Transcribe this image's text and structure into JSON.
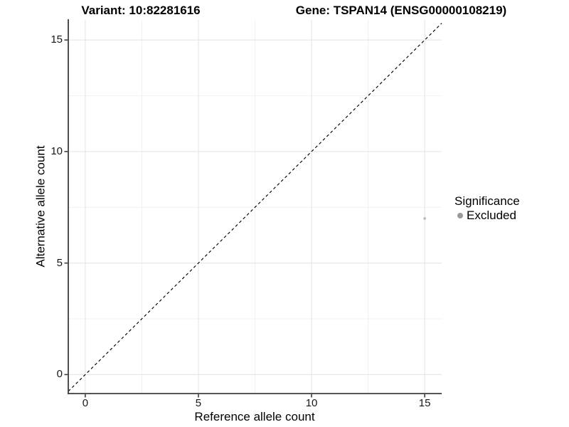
{
  "header": {
    "variant_title": "Variant: 10:82281616",
    "gene_title": "Gene: TSPAN14 (ENSG00000108219)"
  },
  "axes": {
    "x_label": "Reference allele count",
    "y_label": "Alternative allele count"
  },
  "legend": {
    "title": "Significance",
    "position": "right",
    "entries": [
      {
        "label": "Excluded",
        "marker": "dot-icon",
        "color": "#9a9a9a"
      }
    ]
  },
  "chart_data": {
    "type": "scatter",
    "title": "Variant: 10:82281616",
    "subtitle": "Gene: TSPAN14 (ENSG00000108219)",
    "xlabel": "Reference allele count",
    "ylabel": "Alternative allele count",
    "xlim": [
      -0.75,
      15.75
    ],
    "ylim": [
      -0.85,
      15.9
    ],
    "x_major_ticks": [
      0,
      5,
      10,
      15
    ],
    "y_major_ticks": [
      0,
      5,
      10,
      15
    ],
    "x_minor_ticks": [
      2.5,
      7.5,
      12.5
    ],
    "y_minor_ticks": [
      2.5,
      7.5,
      12.5
    ],
    "grid": "major+minor",
    "legend_position": "right",
    "reference_line": {
      "kind": "identity",
      "equation": "y = x",
      "style": "dashed",
      "color": "#000000"
    },
    "series": [
      {
        "name": "Excluded",
        "color": "#bdbdbd",
        "marker": "circle",
        "point_radius_px": 1.9,
        "points": [
          {
            "x": 15,
            "y": 7
          }
        ]
      }
    ],
    "style_colors": {
      "grid_major": "#e5e5e5",
      "grid_minor": "#f1f1f1",
      "axis_line": "#3d3d3d",
      "tick_text": "#161616",
      "title_text": "#000000",
      "background": "#ffffff"
    }
  }
}
